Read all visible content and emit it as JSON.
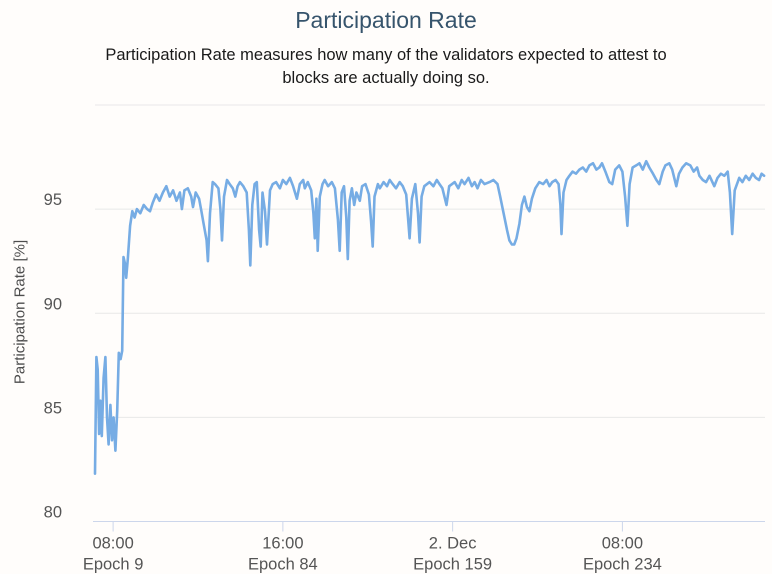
{
  "chart_data": {
    "type": "line",
    "title": "Participation Rate",
    "subtitle_lines": [
      "Participation Rate measures how many of the validators expected to attest to",
      "blocks are actually doing so."
    ],
    "ylabel": "Participation Rate [%]",
    "xlabel": "",
    "legend": "none",
    "grid": true,
    "ylim": [
      80,
      100
    ],
    "xlim": [
      1,
      297
    ],
    "x_unit": "epoch",
    "yticks": [
      {
        "value": 80,
        "label": "80"
      },
      {
        "value": 85,
        "label": "85"
      },
      {
        "value": 90,
        "label": "90"
      },
      {
        "value": 95,
        "label": "95"
      },
      {
        "value": 100,
        "label": ""
      }
    ],
    "xticks": [
      {
        "epoch": 9,
        "time_label": "08:00",
        "epoch_label": "Epoch 9"
      },
      {
        "epoch": 84,
        "time_label": "16:00",
        "epoch_label": "Epoch 84"
      },
      {
        "epoch": 159,
        "time_label": "2. Dec",
        "epoch_label": "Epoch 159"
      },
      {
        "epoch": 234,
        "time_label": "08:00",
        "epoch_label": "Epoch 234"
      }
    ],
    "colors": {
      "title": "#36546c",
      "series": "#76ace4",
      "grid": "#e8e8e8",
      "axis_line": "#ccd6eb",
      "tick_labels": "#555555"
    },
    "series": [
      {
        "name": "Participation Rate",
        "color": "#76ace4",
        "points": [
          [
            1,
            82.3
          ],
          [
            1.6,
            87.9
          ],
          [
            2.2,
            87.3
          ],
          [
            2.8,
            84.2
          ],
          [
            3.4,
            85.8
          ],
          [
            4,
            84.1
          ],
          [
            4.8,
            86.9
          ],
          [
            5.6,
            87.9
          ],
          [
            6.3,
            85
          ],
          [
            7,
            83.7
          ],
          [
            7.8,
            85.6
          ],
          [
            8.5,
            83.9
          ],
          [
            9.2,
            85
          ],
          [
            10,
            83.4
          ],
          [
            10.8,
            85.3
          ],
          [
            11.5,
            88.1
          ],
          [
            12.3,
            87.8
          ],
          [
            13,
            88.2
          ],
          [
            13.6,
            92.7
          ],
          [
            14.2,
            92.4
          ],
          [
            14.8,
            91.7
          ],
          [
            15.5,
            92.6
          ],
          [
            16.5,
            94.2
          ],
          [
            17.5,
            94.9
          ],
          [
            18.5,
            94.6
          ],
          [
            19.5,
            95
          ],
          [
            21,
            94.8
          ],
          [
            22.5,
            95.2
          ],
          [
            24,
            95
          ],
          [
            25.3,
            94.9
          ],
          [
            26.5,
            95.3
          ],
          [
            28,
            95.7
          ],
          [
            29.5,
            95.4
          ],
          [
            31,
            95.8
          ],
          [
            32.5,
            96.1
          ],
          [
            34,
            95.6
          ],
          [
            35.5,
            95.9
          ],
          [
            37,
            95.4
          ],
          [
            38.5,
            95.8
          ],
          [
            39.4,
            95
          ],
          [
            40.5,
            95.9
          ],
          [
            42,
            96
          ],
          [
            43.5,
            95.6
          ],
          [
            44.3,
            95.1
          ],
          [
            45.5,
            95.8
          ],
          [
            47,
            95.5
          ],
          [
            48,
            94.9
          ],
          [
            49,
            94.3
          ],
          [
            50.3,
            93.5
          ],
          [
            50.9,
            92.5
          ],
          [
            51.8,
            94.8
          ],
          [
            53,
            96.3
          ],
          [
            54,
            96.2
          ],
          [
            55.5,
            96
          ],
          [
            56.4,
            95
          ],
          [
            57.1,
            93.5
          ],
          [
            58,
            95.6
          ],
          [
            59.3,
            96.4
          ],
          [
            60.5,
            96.2
          ],
          [
            61.9,
            96
          ],
          [
            63,
            95.6
          ],
          [
            64,
            96.1
          ],
          [
            65,
            96.3
          ],
          [
            66.5,
            96.1
          ],
          [
            68,
            95.8
          ],
          [
            69,
            94
          ],
          [
            69.6,
            92.3
          ],
          [
            70.5,
            95.2
          ],
          [
            71.5,
            96.2
          ],
          [
            72.5,
            96.3
          ],
          [
            73.5,
            94
          ],
          [
            74.2,
            93.2
          ],
          [
            75,
            95.8
          ],
          [
            76.1,
            94.9
          ],
          [
            77,
            93.3
          ],
          [
            78.3,
            95.9
          ],
          [
            79.5,
            96.2
          ],
          [
            81,
            96.3
          ],
          [
            82.7,
            96
          ],
          [
            84,
            96.4
          ],
          [
            85.5,
            96.2
          ],
          [
            87.1,
            96.5
          ],
          [
            88.5,
            96.1
          ],
          [
            90.2,
            95.5
          ],
          [
            91.5,
            96.2
          ],
          [
            93,
            96.4
          ],
          [
            93.7,
            96
          ],
          [
            95,
            96.3
          ],
          [
            96.5,
            95.9
          ],
          [
            97.5,
            94.8
          ],
          [
            98.1,
            93.6
          ],
          [
            98.8,
            95.5
          ],
          [
            99.4,
            93
          ],
          [
            100.3,
            95.6
          ],
          [
            101.5,
            96.2
          ],
          [
            102.5,
            96.4
          ],
          [
            104,
            96.1
          ],
          [
            105.6,
            96.3
          ],
          [
            107,
            96
          ],
          [
            108.3,
            94.5
          ],
          [
            109.1,
            93
          ],
          [
            110,
            95.8
          ],
          [
            111,
            96.1
          ],
          [
            112,
            94.6
          ],
          [
            112.7,
            92.6
          ],
          [
            113.5,
            95.4
          ],
          [
            114.5,
            96
          ],
          [
            115.5,
            95.2
          ],
          [
            116.5,
            95.8
          ],
          [
            118,
            95.4
          ],
          [
            119,
            96.1
          ],
          [
            120.5,
            96.2
          ],
          [
            122,
            95.7
          ],
          [
            123,
            94.4
          ],
          [
            123.7,
            93.2
          ],
          [
            124.5,
            95.6
          ],
          [
            126,
            96.2
          ],
          [
            126.8,
            96
          ],
          [
            128.5,
            96.3
          ],
          [
            130,
            96.1
          ],
          [
            131.2,
            96.4
          ],
          [
            132.5,
            96.2
          ],
          [
            134,
            96
          ],
          [
            135.6,
            96.3
          ],
          [
            137,
            96.1
          ],
          [
            138.5,
            95.7
          ],
          [
            139.3,
            94.6
          ],
          [
            140,
            93.6
          ],
          [
            141,
            95.5
          ],
          [
            142.5,
            96.2
          ],
          [
            143.7,
            94.8
          ],
          [
            144.4,
            93.4
          ],
          [
            145.3,
            95.6
          ],
          [
            146.5,
            96.1
          ],
          [
            148.8,
            96.3
          ],
          [
            150.5,
            96.1
          ],
          [
            152,
            96.4
          ],
          [
            153.2,
            96.2
          ],
          [
            154.5,
            96
          ],
          [
            156.3,
            95.2
          ],
          [
            157.5,
            96.1
          ],
          [
            159.9,
            96.3
          ],
          [
            161.5,
            96
          ],
          [
            163,
            96.4
          ],
          [
            164.3,
            96.2
          ],
          [
            166,
            96.5
          ],
          [
            167.5,
            96.1
          ],
          [
            168.7,
            96.3
          ],
          [
            170,
            96
          ],
          [
            171.5,
            96.4
          ],
          [
            173.1,
            96.2
          ],
          [
            175.3,
            96.3
          ],
          [
            177,
            96.4
          ],
          [
            178.8,
            96.2
          ],
          [
            180,
            95.6
          ],
          [
            181.5,
            94.8
          ],
          [
            183,
            94
          ],
          [
            184.1,
            93.5
          ],
          [
            185.2,
            93.3
          ],
          [
            186.2,
            93.3
          ],
          [
            187.2,
            93.6
          ],
          [
            188.5,
            94.3
          ],
          [
            189.6,
            95.2
          ],
          [
            190.7,
            95.6
          ],
          [
            191.8,
            95.1
          ],
          [
            192.9,
            94.9
          ],
          [
            194,
            95.5
          ],
          [
            195.5,
            96
          ],
          [
            197.3,
            96.3
          ],
          [
            199,
            96.2
          ],
          [
            200.5,
            96.4
          ],
          [
            201.8,
            96.1
          ],
          [
            203,
            96.3
          ],
          [
            204.5,
            96.4
          ],
          [
            205.8,
            96.2
          ],
          [
            206.6,
            95.2
          ],
          [
            207.1,
            93.8
          ],
          [
            208,
            95.8
          ],
          [
            209.3,
            96.4
          ],
          [
            210.6,
            96.6
          ],
          [
            212,
            96.8
          ],
          [
            213.5,
            96.7
          ],
          [
            215,
            96.9
          ],
          [
            216.5,
            97
          ],
          [
            218,
            96.8
          ],
          [
            219.4,
            97.1
          ],
          [
            221,
            97.2
          ],
          [
            222.5,
            96.9
          ],
          [
            223.8,
            97
          ],
          [
            225,
            97.2
          ],
          [
            226.5,
            96.8
          ],
          [
            228.2,
            96.3
          ],
          [
            229.5,
            96.2
          ],
          [
            230.8,
            96.9
          ],
          [
            232.6,
            97.1
          ],
          [
            234,
            96.8
          ],
          [
            235.2,
            95.6
          ],
          [
            236.2,
            94.2
          ],
          [
            237.2,
            96.2
          ],
          [
            238.5,
            97
          ],
          [
            240.1,
            97.1
          ],
          [
            241.5,
            97.2
          ],
          [
            243,
            96.9
          ],
          [
            244.5,
            97.3
          ],
          [
            245.9,
            97
          ],
          [
            247.5,
            96.7
          ],
          [
            249,
            96.4
          ],
          [
            250.3,
            96.2
          ],
          [
            251.8,
            96.8
          ],
          [
            253,
            97.1
          ],
          [
            254.7,
            97.2
          ],
          [
            256,
            96.9
          ],
          [
            257.8,
            96.1
          ],
          [
            259,
            96.7
          ],
          [
            260.5,
            97
          ],
          [
            262.2,
            97.2
          ],
          [
            264,
            97.1
          ],
          [
            265.5,
            96.8
          ],
          [
            267,
            97
          ],
          [
            268,
            96.6
          ],
          [
            269.5,
            96.4
          ],
          [
            271,
            96.3
          ],
          [
            272.5,
            96.6
          ],
          [
            274.6,
            96.1
          ],
          [
            276,
            96.5
          ],
          [
            277.5,
            96.7
          ],
          [
            279,
            96.6
          ],
          [
            280.5,
            96.8
          ],
          [
            281.5,
            95.8
          ],
          [
            282.5,
            93.8
          ],
          [
            283.6,
            95.9
          ],
          [
            285.6,
            96.5
          ],
          [
            287,
            96.3
          ],
          [
            288.5,
            96.6
          ],
          [
            290,
            96.4
          ],
          [
            291.5,
            96.7
          ],
          [
            293,
            96.5
          ],
          [
            294.4,
            96.4
          ],
          [
            295.5,
            96.7
          ],
          [
            296.6,
            96.6
          ]
        ]
      }
    ]
  }
}
